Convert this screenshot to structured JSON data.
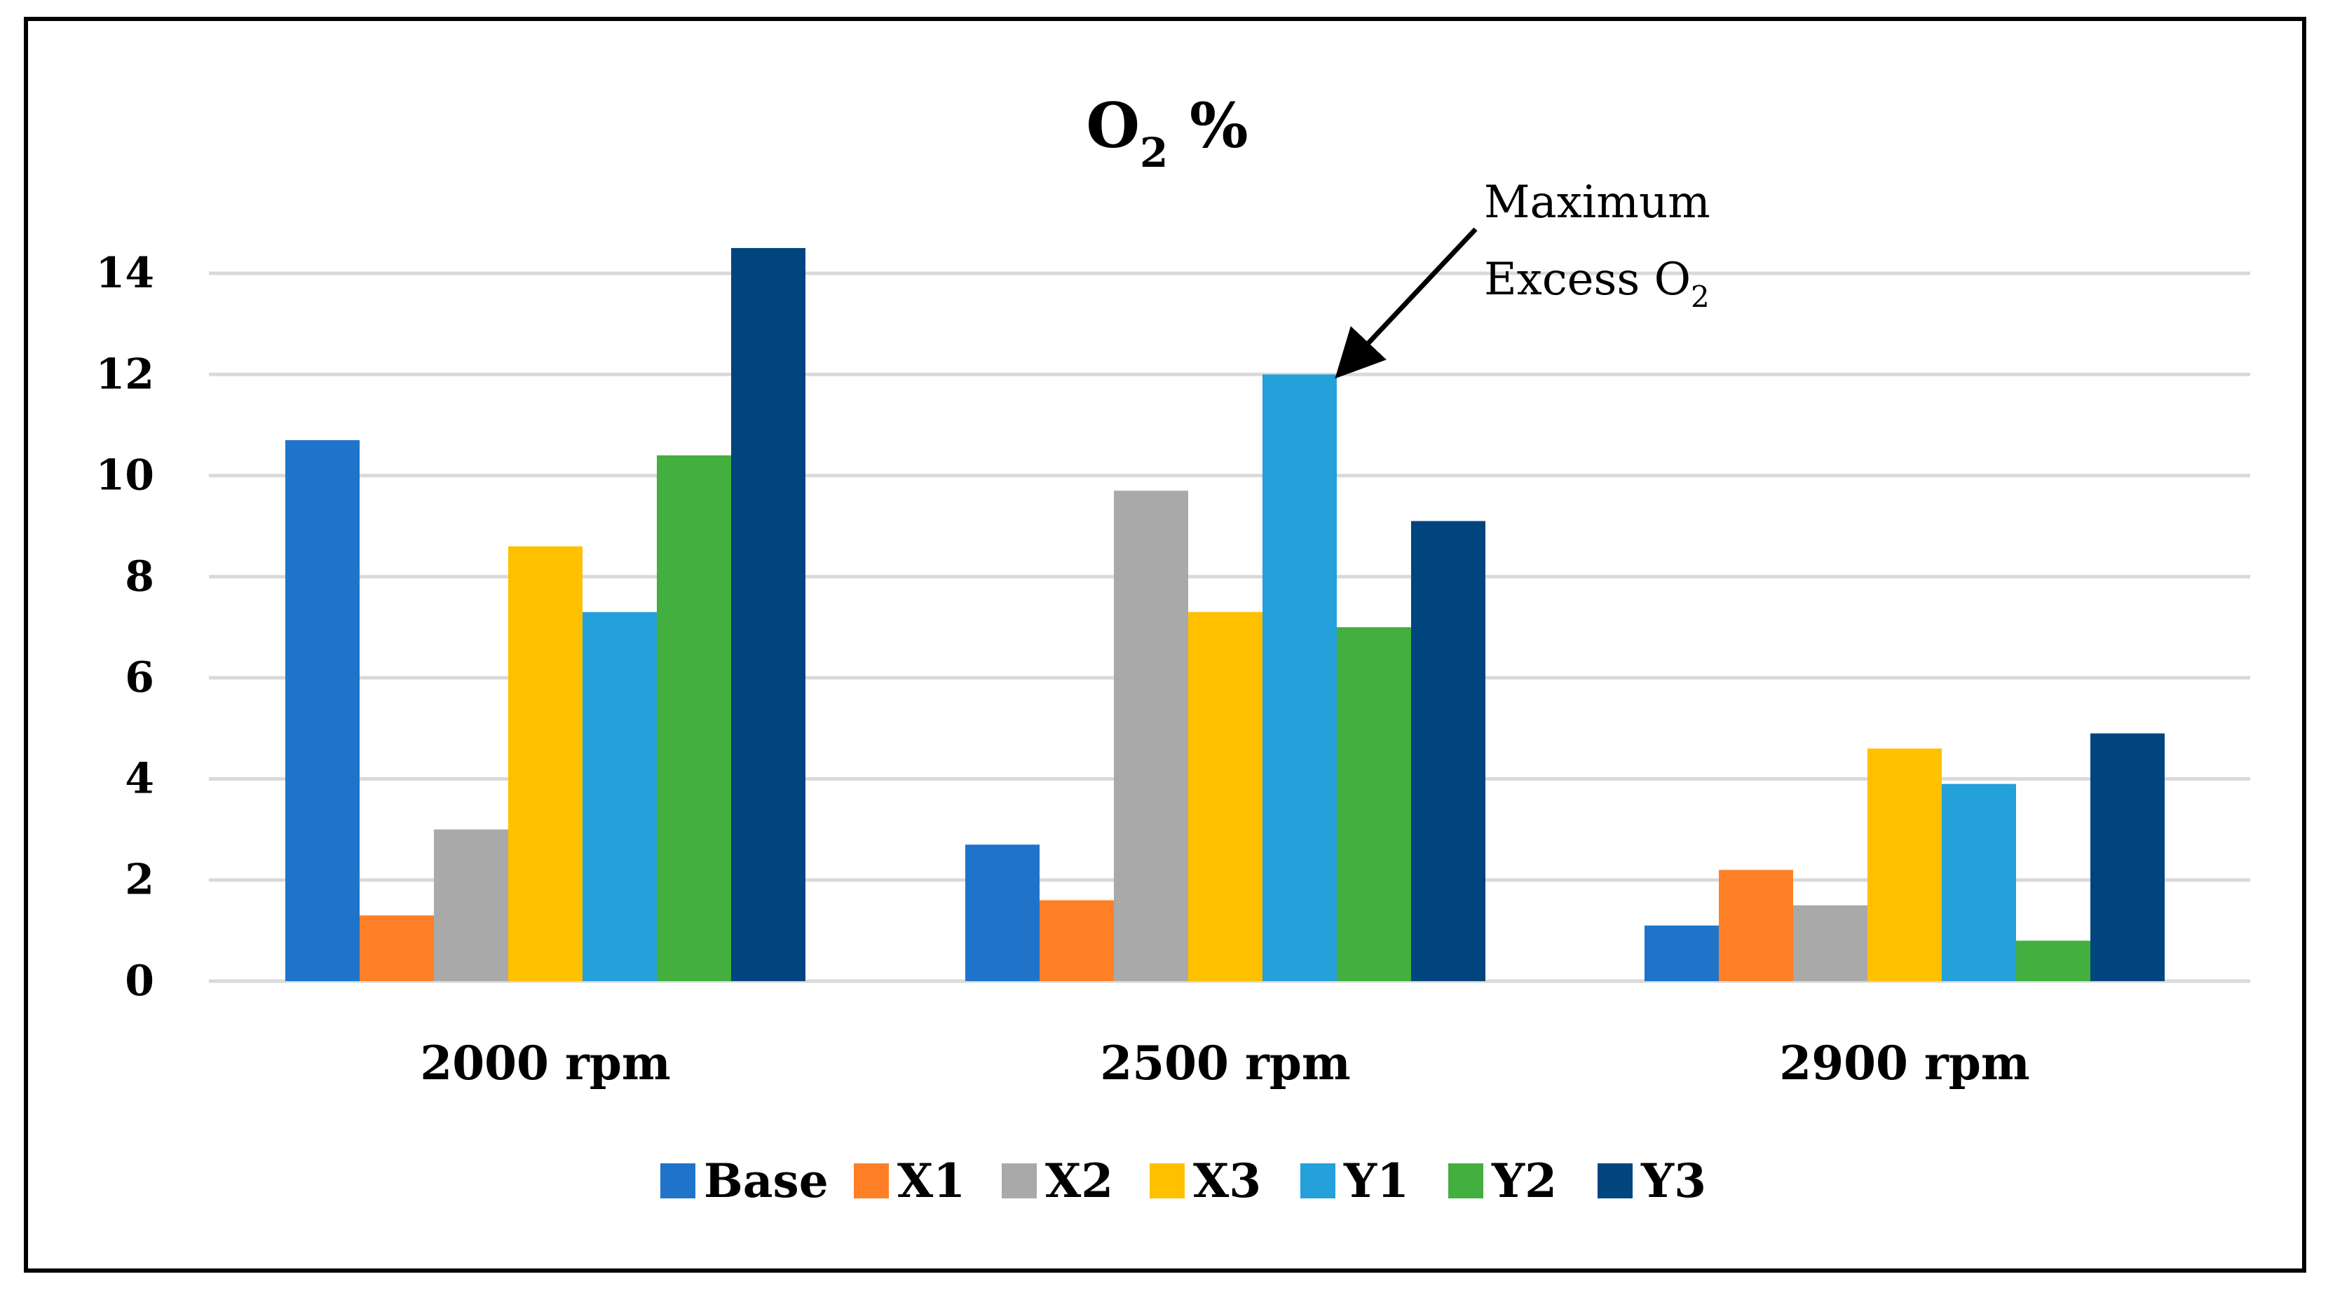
{
  "chart_data": {
    "type": "bar",
    "title": "O",
    "title_subscript": "2",
    "title_suffix": " %",
    "categories": [
      "2000 rpm",
      "2500 rpm",
      "2900 rpm"
    ],
    "series": [
      {
        "name": "Base",
        "color": "#1F74C9",
        "values": [
          10.7,
          2.7,
          1.1
        ]
      },
      {
        "name": "X1",
        "color": "#FF7F27",
        "values": [
          1.3,
          1.6,
          2.2
        ]
      },
      {
        "name": "X2",
        "color": "#A9A9A9",
        "values": [
          3.0,
          9.7,
          1.5
        ]
      },
      {
        "name": "X3",
        "color": "#FFC000",
        "values": [
          8.6,
          7.3,
          4.6
        ]
      },
      {
        "name": "Y1",
        "color": "#24A0DB",
        "values": [
          7.3,
          12.0,
          3.9
        ]
      },
      {
        "name": "Y2",
        "color": "#43AF3E",
        "values": [
          10.4,
          7.0,
          0.8
        ]
      },
      {
        "name": "Y3",
        "color": "#00457E",
        "values": [
          14.5,
          9.1,
          4.9
        ]
      }
    ],
    "yticks": [
      "0",
      "2",
      "4",
      "6",
      "8",
      "10",
      "12",
      "14"
    ],
    "ylim": [
      0,
      14
    ],
    "grid": true,
    "legend": "bottom",
    "xlabel": "",
    "ylabel": "",
    "annotation": {
      "line1": "Maximum",
      "line2": "Excess O",
      "line2_subscript": "2",
      "target_category": "2500 rpm",
      "target_series": "Y1"
    }
  }
}
